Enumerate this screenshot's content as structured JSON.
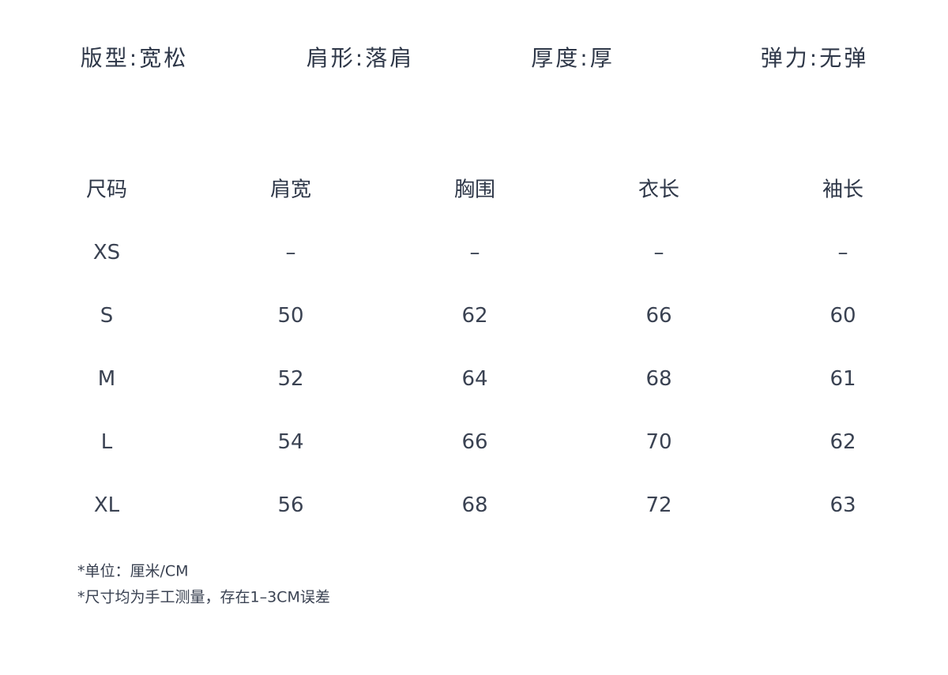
{
  "attributes": [
    "版型:宽松",
    "肩形:落肩",
    "厚度:厚",
    "弹力:无弹"
  ],
  "table": {
    "header": [
      "尺码",
      "肩宽",
      "胸围",
      "衣长",
      "袖长"
    ],
    "rows": [
      [
        "XS",
        "–",
        "–",
        "–",
        "–"
      ],
      [
        "S",
        50,
        62,
        66,
        60
      ],
      [
        "M",
        52,
        64,
        68,
        61
      ],
      [
        "L",
        54,
        66,
        70,
        62
      ],
      [
        "XL",
        56,
        68,
        72,
        63
      ]
    ]
  },
  "notes": [
    "*单位：厘米/CM",
    "*尺寸均为手工测量，存在1–3CM误差"
  ]
}
